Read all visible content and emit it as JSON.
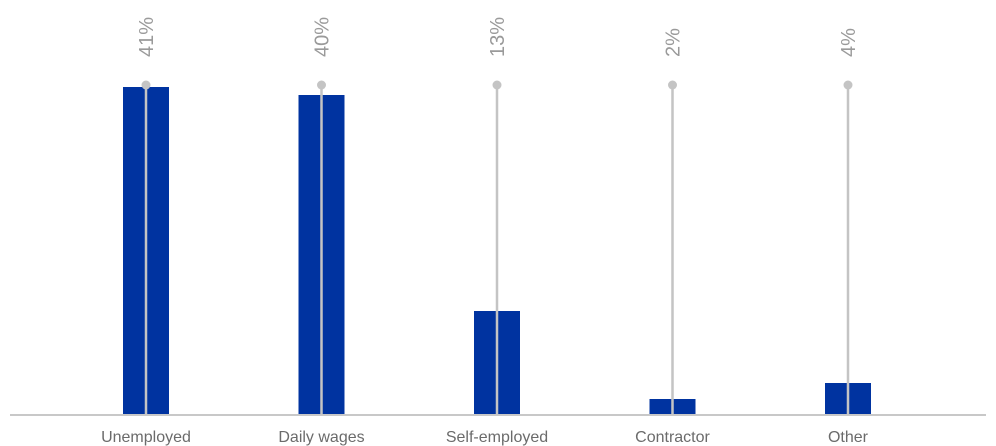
{
  "chart_data": {
    "type": "bar",
    "title": "",
    "xlabel": "",
    "ylabel": "",
    "categories": [
      "Unemployed",
      "Daily wages",
      "Self-employed",
      "Contractor",
      "Other"
    ],
    "values": [
      41,
      40,
      13,
      2,
      4
    ],
    "value_labels": [
      "41%",
      "40%",
      "13%",
      "2%",
      "4%"
    ],
    "ylim": [
      0,
      55
    ],
    "grid": false,
    "legend": "none",
    "colors": {
      "bar": "#0033a0",
      "stem": "#c4c4c4",
      "axis": "#c8c8c8",
      "label": "#6b6b6b",
      "value_label": "#9a9a9a"
    }
  }
}
